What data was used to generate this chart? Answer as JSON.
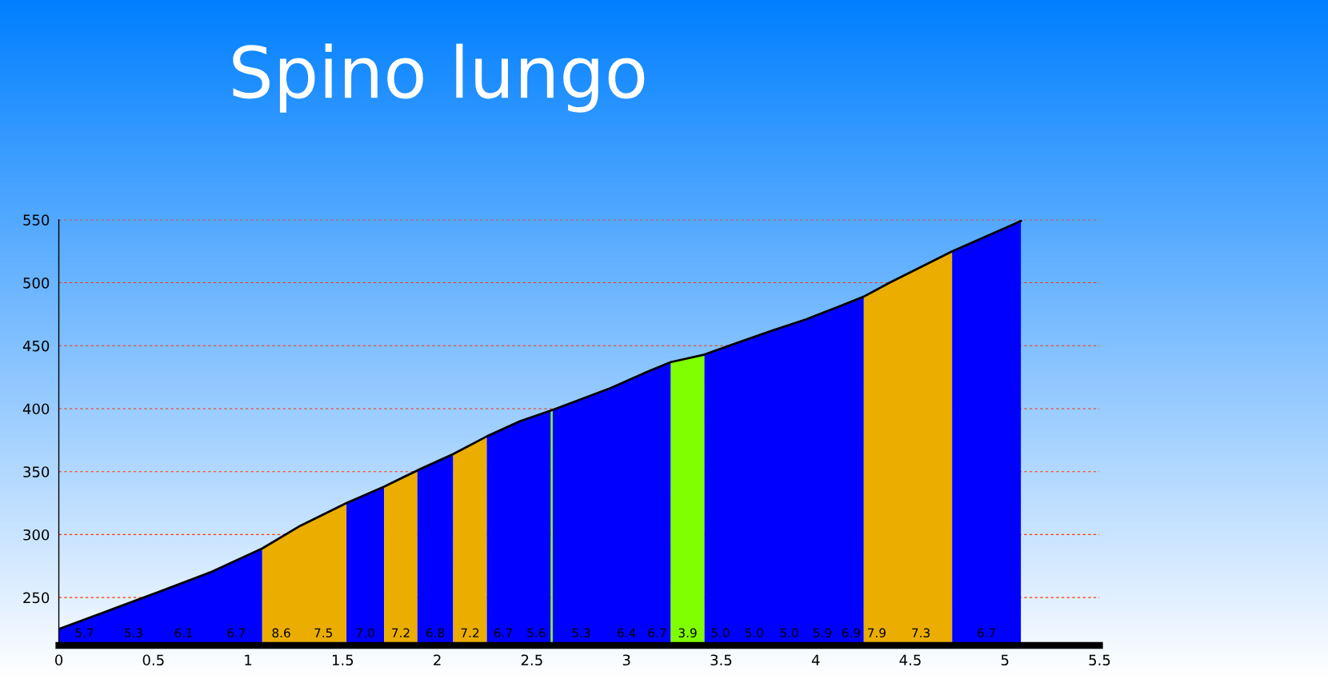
{
  "chart_data": {
    "type": "area",
    "title": "Spino lungo",
    "xlim": [
      0,
      5.5
    ],
    "xticks": [
      0,
      0.5,
      1,
      1.5,
      2,
      2.5,
      3,
      3.5,
      4,
      4.5,
      5,
      5.5
    ],
    "ylim": [
      212,
      550
    ],
    "yticks": [
      250,
      300,
      350,
      400,
      450,
      500,
      550
    ],
    "grid": "y",
    "series": [
      {
        "color": "#0000ff",
        "x": [
          0,
          0.27,
          0.52,
          0.8,
          1.075
        ],
        "values": [
          225,
          240,
          254,
          270,
          289
        ]
      },
      {
        "color": "#ebad00",
        "x": [
          1.075,
          1.276,
          1.52
        ],
        "values": [
          289,
          307,
          325
        ]
      },
      {
        "color": "#0000ff",
        "x": [
          1.52,
          1.719
        ],
        "values": [
          325,
          338
        ]
      },
      {
        "color": "#ebad00",
        "x": [
          1.719,
          1.895
        ],
        "values": [
          338,
          351
        ]
      },
      {
        "color": "#0000ff",
        "x": [
          1.895,
          2.084
        ],
        "values": [
          351,
          364
        ]
      },
      {
        "color": "#ebad00",
        "x": [
          2.084,
          2.262
        ],
        "values": [
          364,
          378
        ]
      },
      {
        "color": "#0000ff",
        "x": [
          2.262,
          2.436,
          2.6
        ],
        "values": [
          378,
          390,
          398
        ]
      },
      {
        "color": "#80ff00",
        "x": [
          2.6,
          2.61
        ],
        "values": [
          398,
          399
        ]
      },
      {
        "color": "#0000ff",
        "x": [
          2.61,
          2.91,
          3.09,
          3.234
        ],
        "values": [
          399,
          416,
          428,
          437
        ]
      },
      {
        "color": "#80ff00",
        "x": [
          3.234,
          3.412
        ],
        "values": [
          437,
          443
        ]
      },
      {
        "color": "#0000ff",
        "x": [
          3.412,
          3.58,
          3.77,
          3.95,
          4.12,
          4.254
        ],
        "values": [
          443,
          452,
          462,
          471,
          481,
          489
        ]
      },
      {
        "color": "#ebad00",
        "x": [
          4.254,
          4.39,
          4.721
        ],
        "values": [
          489,
          500,
          525
        ]
      },
      {
        "color": "#0000ff",
        "x": [
          4.721,
          5.084
        ],
        "values": [
          525,
          549
        ]
      },
      {
        "type": "line",
        "color": "#000000",
        "x": [
          0,
          0.27,
          0.52,
          0.8,
          1.075,
          1.276,
          1.52,
          1.719,
          1.895,
          2.084,
          2.262,
          2.436,
          2.61,
          2.91,
          3.09,
          3.234,
          3.412,
          3.58,
          3.77,
          3.95,
          4.12,
          4.254,
          4.39,
          4.721,
          5.084
        ],
        "values": [
          225,
          240,
          254,
          270,
          289,
          307,
          325,
          338,
          351,
          364,
          378,
          390,
          399,
          416,
          428,
          437,
          443,
          452,
          462,
          471,
          481,
          489,
          500,
          525,
          549
        ]
      }
    ],
    "annotations": [
      "5.7",
      "5.3",
      "6.1",
      "6.7",
      "8.6",
      "7.5",
      "7.0",
      "7.2",
      "6.8",
      "7.2",
      "6.7",
      "5.6",
      "5.3",
      "6.4",
      "6.7",
      "3.9",
      "5.0",
      "5.0",
      "5.0",
      "5.9",
      "6.9",
      "7.9",
      "7.3",
      "6.7"
    ]
  }
}
